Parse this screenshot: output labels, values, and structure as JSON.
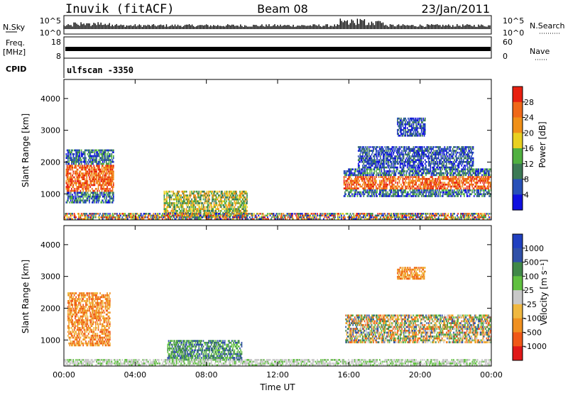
{
  "header": {
    "title": "Inuvik (fitACF)",
    "beam": "Beam 08",
    "date": "23/Jan/2011"
  },
  "top_panels": {
    "nsky_label": "N.Sky",
    "nsky_top": "10^5",
    "nsky_bottom": "10^0",
    "nsearch_label": "N.Search",
    "nsearch_top": "10^5",
    "nsearch_bottom": "10^0",
    "freq_label": "Freq.",
    "freq_unit": "[MHz]",
    "freq_top": "18",
    "freq_bottom": "8",
    "nave_label": "Nave",
    "nave_top": "60",
    "nave_bottom": "0",
    "cpid_label": "CPID",
    "cpid_value": "ulfscan -3350"
  },
  "colors": {
    "power_scale": [
      "#1010e0",
      "#2850b8",
      "#3c7a55",
      "#50b040",
      "#e8d020",
      "#f09018",
      "#f06818",
      "#e82010"
    ],
    "velocity_scale": [
      "#e01818",
      "#f05818",
      "#f09020",
      "#f0b840",
      "#c8c8c8",
      "#60c040",
      "#408848",
      "#3050a8",
      "#2040c0"
    ],
    "gray": "#c8c8c8"
  },
  "chart_data": [
    {
      "type": "heatmap",
      "panel": "power",
      "xlabel": "",
      "ylabel": "Slant Range [km]",
      "xlim": [
        "00:00",
        "24:00"
      ],
      "ylim": [
        180,
        4600
      ],
      "yticks": [
        "1000",
        "2000",
        "3000",
        "4000"
      ],
      "colorbar": {
        "label": "Power [dB]",
        "ticks": [
          "4",
          "8",
          "12",
          "16",
          "20",
          "24",
          "28"
        ]
      },
      "regions": [
        {
          "t0": 0.1,
          "t1": 2.8,
          "r0": 700,
          "r1": 2400,
          "level": "high"
        },
        {
          "t0": 5.6,
          "t1": 10.3,
          "r0": 250,
          "r1": 1100,
          "level": "mid"
        },
        {
          "t0": 15.7,
          "t1": 24.0,
          "r0": 900,
          "r1": 1800,
          "level": "high"
        },
        {
          "t0": 16.5,
          "t1": 23.0,
          "r0": 1800,
          "r1": 2500,
          "level": "low"
        },
        {
          "t0": 18.7,
          "t1": 20.3,
          "r0": 2800,
          "r1": 3400,
          "level": "low"
        },
        {
          "t0": 0.0,
          "t1": 24.0,
          "r0": 180,
          "r1": 400,
          "level": "mixed"
        }
      ]
    },
    {
      "type": "heatmap",
      "panel": "velocity",
      "xlabel": "Time UT",
      "ylabel": "Slant Range [km]",
      "xlim": [
        "00:00",
        "24:00"
      ],
      "ylim": [
        180,
        4600
      ],
      "yticks": [
        "1000",
        "2000",
        "3000",
        "4000"
      ],
      "xticks": [
        "00:00",
        "04:00",
        "08:00",
        "12:00",
        "16:00",
        "20:00",
        "00:00"
      ],
      "colorbar": {
        "label": "Velocity [m s⁻¹]",
        "ticks": [
          "1000",
          "500",
          "100",
          "25",
          "-25",
          "-100",
          "-500",
          "-1000"
        ]
      },
      "regions": [
        {
          "t0": 0.2,
          "t1": 2.6,
          "r0": 800,
          "r1": 2500,
          "level": "away"
        },
        {
          "t0": 5.8,
          "t1": 10.0,
          "r0": 350,
          "r1": 1000,
          "level": "toward"
        },
        {
          "t0": 15.8,
          "t1": 24.0,
          "r0": 900,
          "r1": 1800,
          "level": "mixed"
        },
        {
          "t0": 18.7,
          "t1": 20.3,
          "r0": 2900,
          "r1": 3300,
          "level": "away"
        },
        {
          "t0": 0.0,
          "t1": 24.0,
          "r0": 180,
          "r1": 400,
          "level": "ground"
        }
      ]
    }
  ]
}
